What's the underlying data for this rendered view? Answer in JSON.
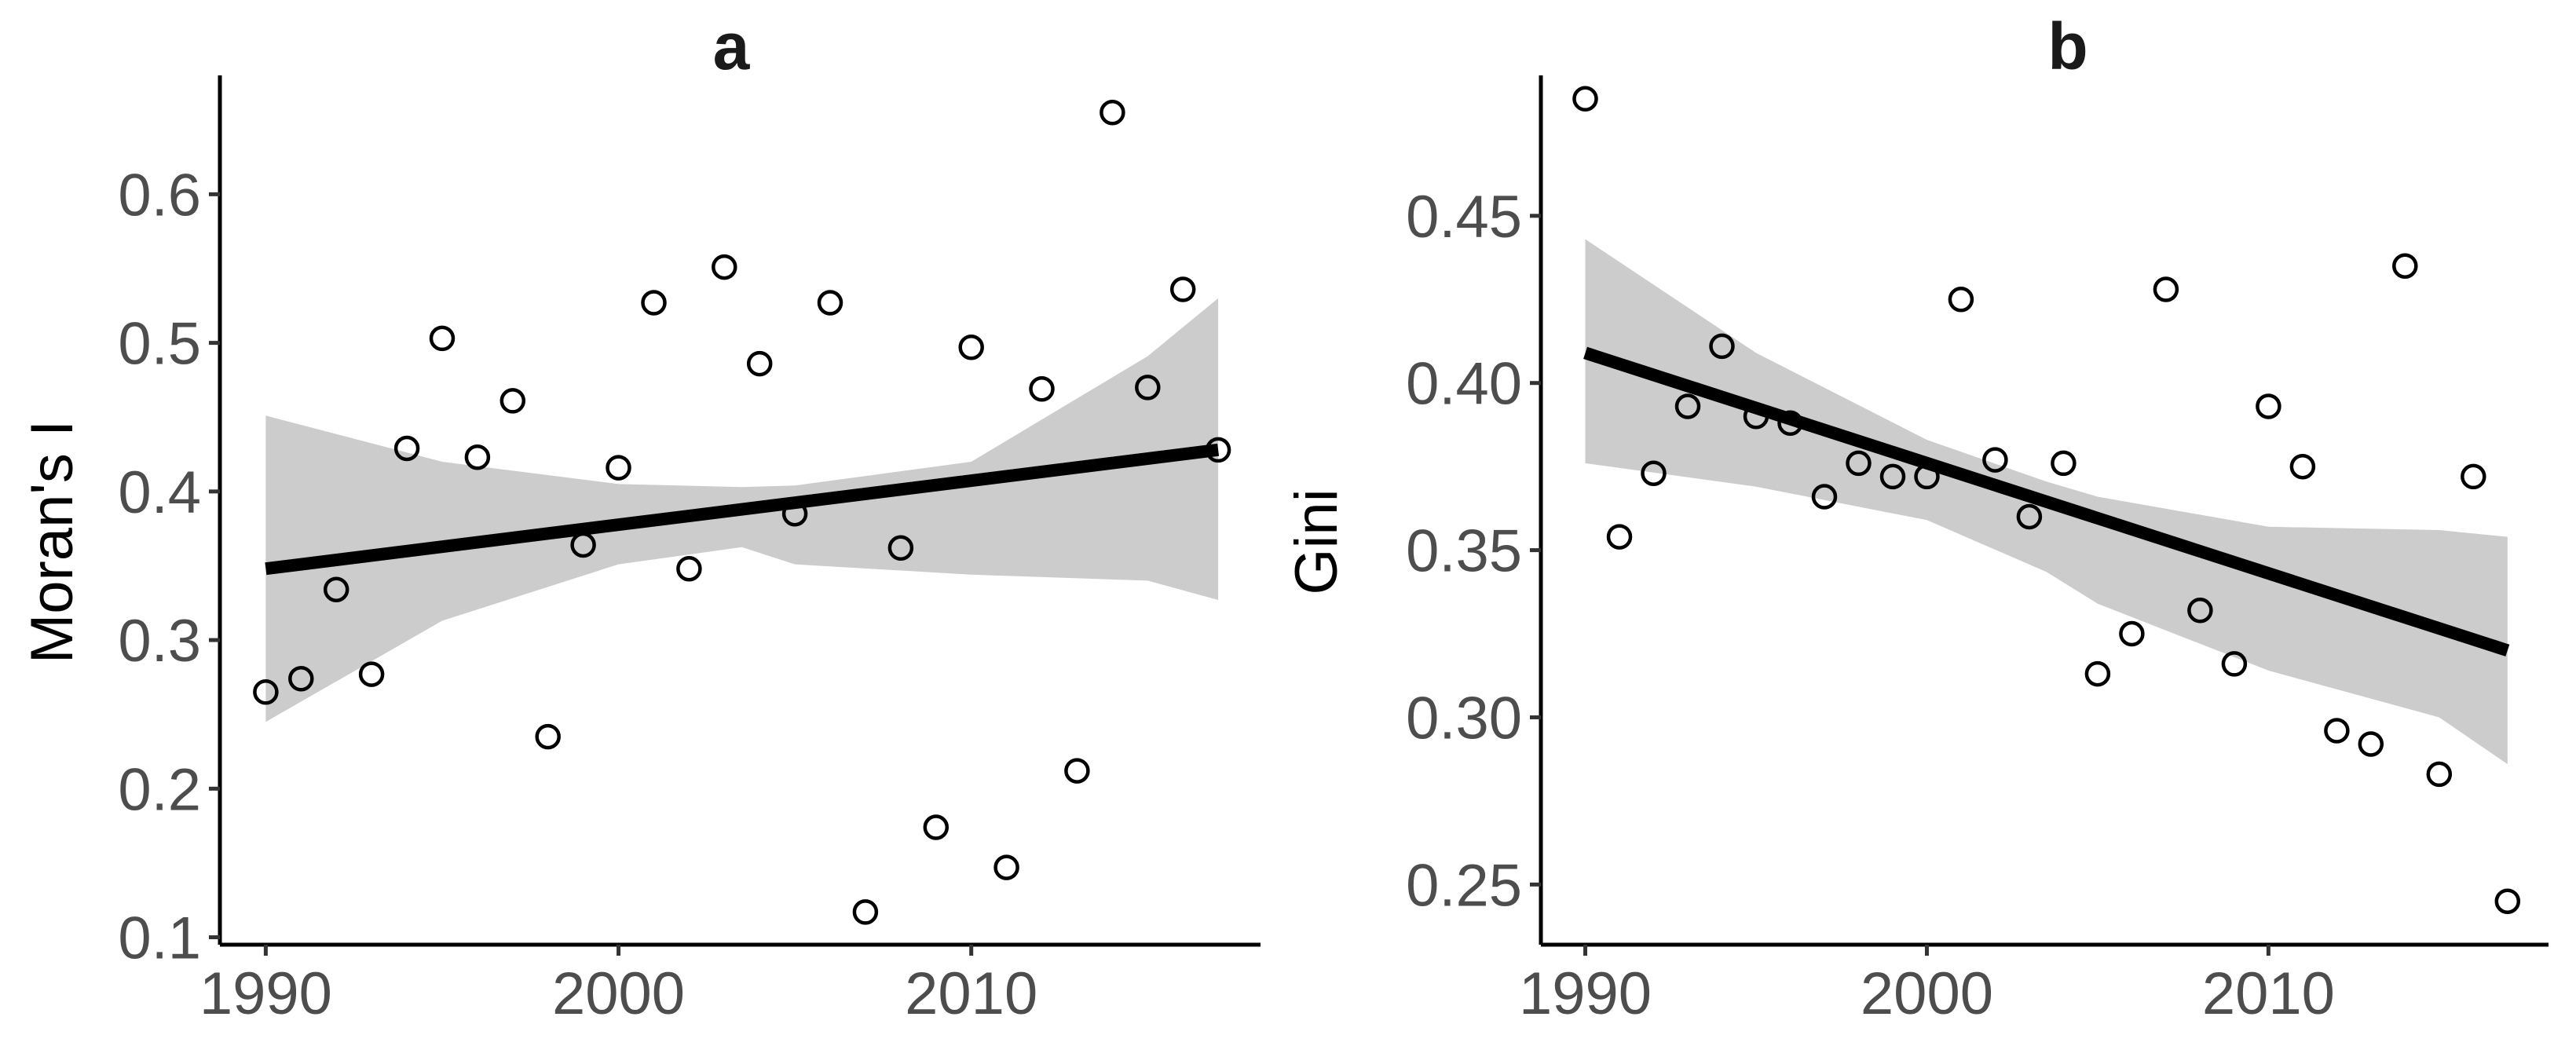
{
  "chart_data": [
    {
      "type": "scatter",
      "panel_label": "a",
      "title": "a",
      "xlabel": "",
      "ylabel": "Moran's I",
      "xlim": [
        1988.7,
        2018.2
      ],
      "ylim": [
        0.095,
        0.68
      ],
      "x_ticks": [
        1990,
        2000,
        2010
      ],
      "x_tick_labels": [
        "1990",
        "2000",
        "2010"
      ],
      "y_ticks": [
        0.1,
        0.2,
        0.3,
        0.4,
        0.5,
        0.6
      ],
      "y_tick_labels": [
        "0.1",
        "0.2",
        "0.3",
        "0.4",
        "0.5",
        "0.6"
      ],
      "grid": false,
      "points": [
        {
          "x": 1990,
          "y": 0.265
        },
        {
          "x": 1991,
          "y": 0.274
        },
        {
          "x": 1992,
          "y": 0.334
        },
        {
          "x": 1993,
          "y": 0.277
        },
        {
          "x": 1994,
          "y": 0.429
        },
        {
          "x": 1995,
          "y": 0.503
        },
        {
          "x": 1996,
          "y": 0.423
        },
        {
          "x": 1997,
          "y": 0.461
        },
        {
          "x": 1998,
          "y": 0.235
        },
        {
          "x": 1999,
          "y": 0.364
        },
        {
          "x": 2000,
          "y": 0.416
        },
        {
          "x": 2001,
          "y": 0.527
        },
        {
          "x": 2002,
          "y": 0.348
        },
        {
          "x": 2003,
          "y": 0.551
        },
        {
          "x": 2004,
          "y": 0.486
        },
        {
          "x": 2005,
          "y": 0.385
        },
        {
          "x": 2006,
          "y": 0.527
        },
        {
          "x": 2007,
          "y": 0.117
        },
        {
          "x": 2008,
          "y": 0.362
        },
        {
          "x": 2009,
          "y": 0.174
        },
        {
          "x": 2010,
          "y": 0.497
        },
        {
          "x": 2011,
          "y": 0.147
        },
        {
          "x": 2012,
          "y": 0.469
        },
        {
          "x": 2013,
          "y": 0.212
        },
        {
          "x": 2014,
          "y": 0.655
        },
        {
          "x": 2015,
          "y": 0.47
        },
        {
          "x": 2016,
          "y": 0.536
        },
        {
          "x": 2017,
          "y": 0.428
        }
      ],
      "fit_line": {
        "x": [
          1990,
          2017
        ],
        "y": [
          0.348,
          0.428
        ]
      },
      "confidence_band": {
        "x": [
          1990,
          1995,
          2000,
          2003.5,
          2005,
          2010,
          2015,
          2017
        ],
        "upper": [
          0.451,
          0.42,
          0.405,
          0.403,
          0.404,
          0.42,
          0.491,
          0.53
        ],
        "lower": [
          0.245,
          0.313,
          0.351,
          0.3625,
          0.351,
          0.344,
          0.34,
          0.327
        ]
      },
      "colors": {
        "band": "#cccccc",
        "line": "#000000",
        "point_stroke": "#000000"
      }
    },
    {
      "type": "scatter",
      "panel_label": "b",
      "title": "b",
      "xlabel": "",
      "ylabel": "Gini",
      "xlim": [
        1988.7,
        2018.2
      ],
      "ylim": [
        0.232,
        0.492
      ],
      "x_ticks": [
        1990,
        2000,
        2010
      ],
      "x_tick_labels": [
        "1990",
        "2000",
        "2010"
      ],
      "y_ticks": [
        0.25,
        0.3,
        0.35,
        0.4,
        0.45
      ],
      "y_tick_labels": [
        "0.25",
        "0.30",
        "0.35",
        "0.40",
        "0.45"
      ],
      "grid": false,
      "points": [
        {
          "x": 1990,
          "y": 0.485
        },
        {
          "x": 1991,
          "y": 0.354
        },
        {
          "x": 1992,
          "y": 0.373
        },
        {
          "x": 1993,
          "y": 0.393
        },
        {
          "x": 1994,
          "y": 0.411
        },
        {
          "x": 1995,
          "y": 0.39
        },
        {
          "x": 1996,
          "y": 0.388
        },
        {
          "x": 1997,
          "y": 0.366
        },
        {
          "x": 1998,
          "y": 0.376
        },
        {
          "x": 1999,
          "y": 0.372
        },
        {
          "x": 2000,
          "y": 0.372
        },
        {
          "x": 2001,
          "y": 0.425
        },
        {
          "x": 2002,
          "y": 0.377
        },
        {
          "x": 2003,
          "y": 0.36
        },
        {
          "x": 2004,
          "y": 0.376
        },
        {
          "x": 2005,
          "y": 0.313
        },
        {
          "x": 2006,
          "y": 0.325
        },
        {
          "x": 2007,
          "y": 0.428
        },
        {
          "x": 2008,
          "y": 0.332
        },
        {
          "x": 2009,
          "y": 0.316
        },
        {
          "x": 2010,
          "y": 0.393
        },
        {
          "x": 2011,
          "y": 0.375
        },
        {
          "x": 2012,
          "y": 0.296
        },
        {
          "x": 2013,
          "y": 0.292
        },
        {
          "x": 2014,
          "y": 0.435
        },
        {
          "x": 2015,
          "y": 0.283
        },
        {
          "x": 2016,
          "y": 0.372
        },
        {
          "x": 2017,
          "y": 0.245
        }
      ],
      "fit_line": {
        "x": [
          1990,
          2017
        ],
        "y": [
          0.409,
          0.32
        ]
      },
      "confidence_band": {
        "x": [
          1990,
          1995,
          2000,
          2003.5,
          2005,
          2010,
          2015,
          2017
        ],
        "upper": [
          0.443,
          0.409,
          0.383,
          0.3705,
          0.366,
          0.357,
          0.356,
          0.354
        ],
        "lower": [
          0.376,
          0.369,
          0.359,
          0.3435,
          0.334,
          0.314,
          0.3,
          0.286
        ]
      },
      "colors": {
        "band": "#cccccc",
        "line": "#000000",
        "point_stroke": "#000000"
      }
    }
  ]
}
